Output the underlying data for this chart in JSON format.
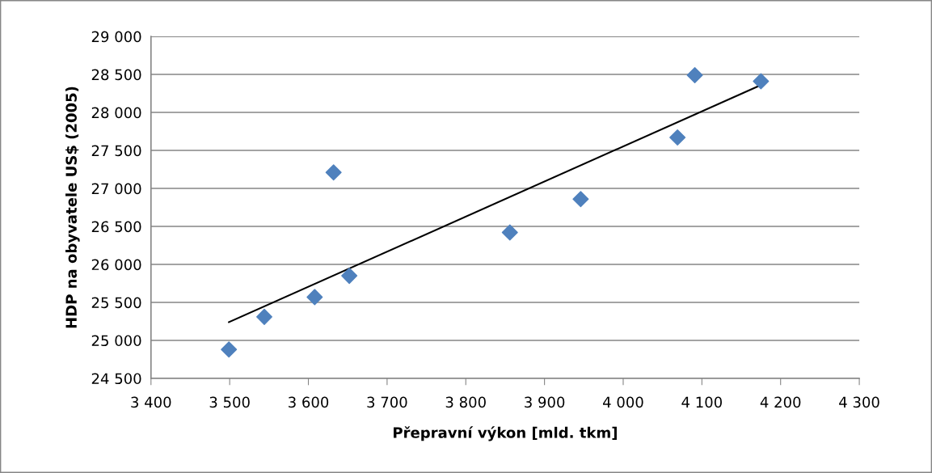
{
  "chart_data": {
    "type": "scatter",
    "xlabel": "Přepravní výkon [mld. tkm]",
    "ylabel": "HDP na obyvatele US$ (2005)",
    "series": [
      {
        "color": "#4f81bd",
        "marker": "diamond",
        "x": [
          3499,
          3544,
          3608,
          3632,
          3652,
          3856,
          3946,
          4069,
          4091,
          4175
        ],
        "values": [
          24880,
          25310,
          25570,
          27210,
          25850,
          26420,
          26860,
          27670,
          28490,
          28410
        ]
      },
      {
        "type": "line",
        "color": "#000000",
        "marker": "none",
        "x": [
          3499,
          4175
        ],
        "values": [
          25240,
          28360
        ]
      }
    ],
    "xlim": [
      3400,
      4300
    ],
    "xticks": [
      {
        "value": 3400,
        "label": "3 400"
      },
      {
        "value": 3500,
        "label": "3 500"
      },
      {
        "value": 3600,
        "label": "3 600"
      },
      {
        "value": 3700,
        "label": "3 700"
      },
      {
        "value": 3800,
        "label": "3 800"
      },
      {
        "value": 3900,
        "label": "3 900"
      },
      {
        "value": 4000,
        "label": "4 000"
      },
      {
        "value": 4100,
        "label": "4 100"
      },
      {
        "value": 4200,
        "label": "4 200"
      },
      {
        "value": 4300,
        "label": "4 300"
      }
    ],
    "ylim": [
      24500,
      29000
    ],
    "yticks": [
      {
        "value": 24500,
        "label": "24 500"
      },
      {
        "value": 25000,
        "label": "25 000"
      },
      {
        "value": 25500,
        "label": "25 500"
      },
      {
        "value": 26000,
        "label": "26 000"
      },
      {
        "value": 26500,
        "label": "26 500"
      },
      {
        "value": 27000,
        "label": "27 000"
      },
      {
        "value": 27500,
        "label": "27 500"
      },
      {
        "value": 28000,
        "label": "28 000"
      },
      {
        "value": 28500,
        "label": "28 500"
      },
      {
        "value": 29000,
        "label": "29 000"
      }
    ],
    "grid": "y",
    "legend": false
  }
}
